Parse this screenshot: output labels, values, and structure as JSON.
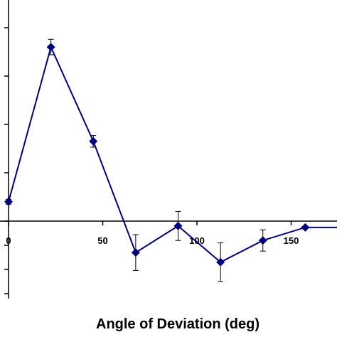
{
  "chart_data": {
    "type": "line",
    "xlabel": "Angle of Deviation (deg)",
    "x_ticks": [
      0,
      50,
      100,
      150
    ],
    "xlim": [
      0,
      175
    ],
    "series": [
      {
        "color": "#00007f",
        "marker": "diamond",
        "points": [
          {
            "x": 0,
            "y": 0.4,
            "err": 0.05
          },
          {
            "x": 22.5,
            "y": 3.6,
            "err": 0.16
          },
          {
            "x": 45,
            "y": 1.65,
            "err": 0.12
          },
          {
            "x": 67.5,
            "y": -0.65,
            "err": 0.37
          },
          {
            "x": 90,
            "y": -0.1,
            "err": 0.3
          },
          {
            "x": 112.5,
            "y": -0.85,
            "err": 0.4
          },
          {
            "x": 135,
            "y": -0.4,
            "err": 0.22
          },
          {
            "x": 157.5,
            "y": -0.13,
            "err": 0.0
          },
          {
            "x": 175,
            "y": -0.13,
            "err": 0.0
          }
        ]
      }
    ],
    "grid": false
  }
}
